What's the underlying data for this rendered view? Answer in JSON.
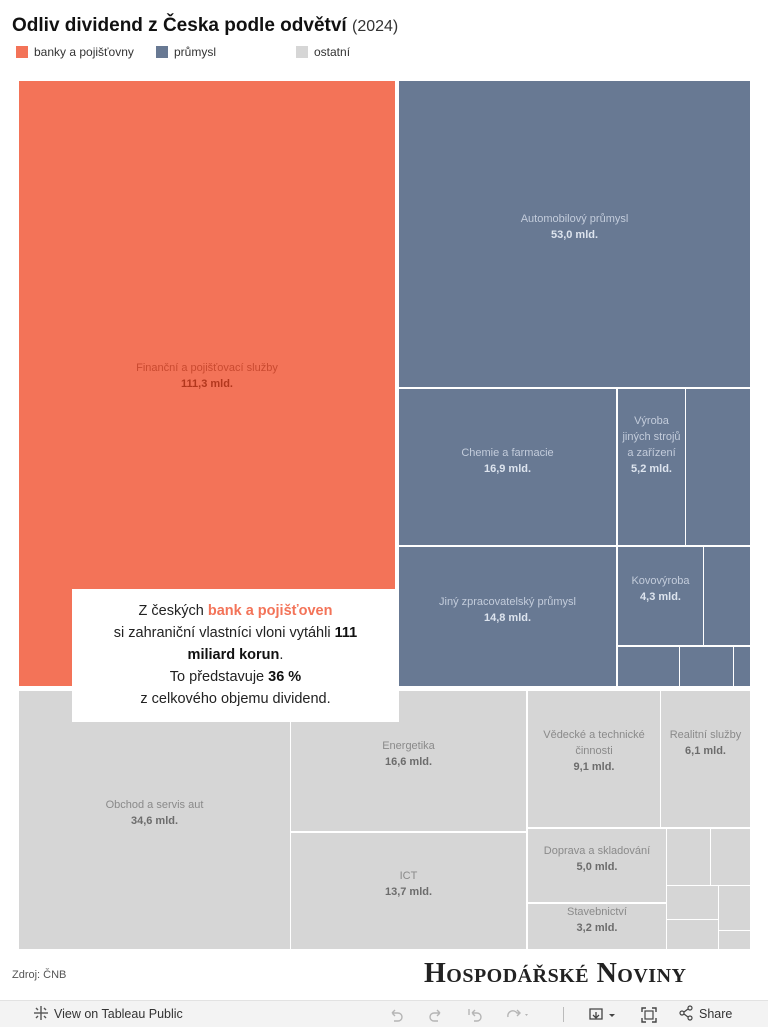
{
  "title": {
    "main": "Odliv dividend z Česka podle odvětví",
    "year": "(2024)"
  },
  "legend": [
    {
      "label": "banky a pojišťovny",
      "color": "#f37358"
    },
    {
      "label": "průmysl",
      "color": "#687993"
    },
    {
      "label": "ostatní",
      "color": "#d6d6d6"
    }
  ],
  "chart_data": {
    "type": "treemap",
    "title": "Odliv dividend z Česka podle odvětví (2024)",
    "unit": "mld.",
    "groups": [
      {
        "name": "banky a pojišťovny",
        "color": "#f37358"
      },
      {
        "name": "průmysl",
        "color": "#687993"
      },
      {
        "name": "ostatní",
        "color": "#d6d6d6"
      }
    ],
    "tiles": [
      {
        "name": "Finanční a pojišťovací služby",
        "value_label": "111,3 mld.",
        "value": 111.3,
        "group": 0
      },
      {
        "name": "Automobilový průmysl",
        "value_label": "53,0 mld.",
        "value": 53.0,
        "group": 1
      },
      {
        "name": "Chemie a farmacie",
        "value_label": "16,9 mld.",
        "value": 16.9,
        "group": 1
      },
      {
        "name": "Výroba jiných strojů a zařízení",
        "value_label": "5,2 mld.",
        "value": 5.2,
        "group": 1
      },
      {
        "name": "",
        "value_label": "",
        "value": null,
        "group": 1
      },
      {
        "name": "Jiný zpracovatelský průmysl",
        "value_label": "14,8 mld.",
        "value": 14.8,
        "group": 1
      },
      {
        "name": "Kovovýroba",
        "value_label": "4,3 mld.",
        "value": 4.3,
        "group": 1
      },
      {
        "name": "",
        "value_label": "",
        "value": null,
        "group": 1
      },
      {
        "name": "",
        "value_label": "",
        "value": null,
        "group": 1
      },
      {
        "name": "",
        "value_label": "",
        "value": null,
        "group": 1
      },
      {
        "name": "",
        "value_label": "",
        "value": null,
        "group": 1
      },
      {
        "name": "Obchod a servis aut",
        "value_label": "34,6 mld.",
        "value": 34.6,
        "group": 2
      },
      {
        "name": "Energetika",
        "value_label": "16,6 mld.",
        "value": 16.6,
        "group": 2
      },
      {
        "name": "ICT",
        "value_label": "13,7 mld.",
        "value": 13.7,
        "group": 2
      },
      {
        "name": "Vědecké a technické činnosti",
        "value_label": "9,1 mld.",
        "value": 9.1,
        "group": 2
      },
      {
        "name": "Realitní služby",
        "value_label": "6,1 mld.",
        "value": 6.1,
        "group": 2
      },
      {
        "name": "Doprava a skladování",
        "value_label": "5,0 mld.",
        "value": 5.0,
        "group": 2
      },
      {
        "name": "Stavebnictví",
        "value_label": "3,2 mld.",
        "value": 3.2,
        "group": 2
      },
      {
        "name": "",
        "value_label": "",
        "value": null,
        "group": 2
      },
      {
        "name": "",
        "value_label": "",
        "value": null,
        "group": 2
      },
      {
        "name": "",
        "value_label": "",
        "value": null,
        "group": 2
      },
      {
        "name": "",
        "value_label": "",
        "value": null,
        "group": 2
      },
      {
        "name": "",
        "value_label": "",
        "value": null,
        "group": 2
      },
      {
        "name": "",
        "value_label": "",
        "value": null,
        "group": 2
      }
    ]
  },
  "callout": {
    "p1": "Z českých ",
    "accent": "bank a pojišťoven",
    "p2": "si zahraniční vlastníci vloni vytáhli ",
    "b1": "111 miliard korun",
    "p3": ".",
    "p4": "To představuje ",
    "b2": "36 %",
    "p5": "z celkového objemu dividend."
  },
  "source": "Zdroj: ČNB",
  "brand": "Hospodářské Noviny",
  "toolbar": {
    "view_label": "View on Tableau Public",
    "share_label": "Share"
  }
}
